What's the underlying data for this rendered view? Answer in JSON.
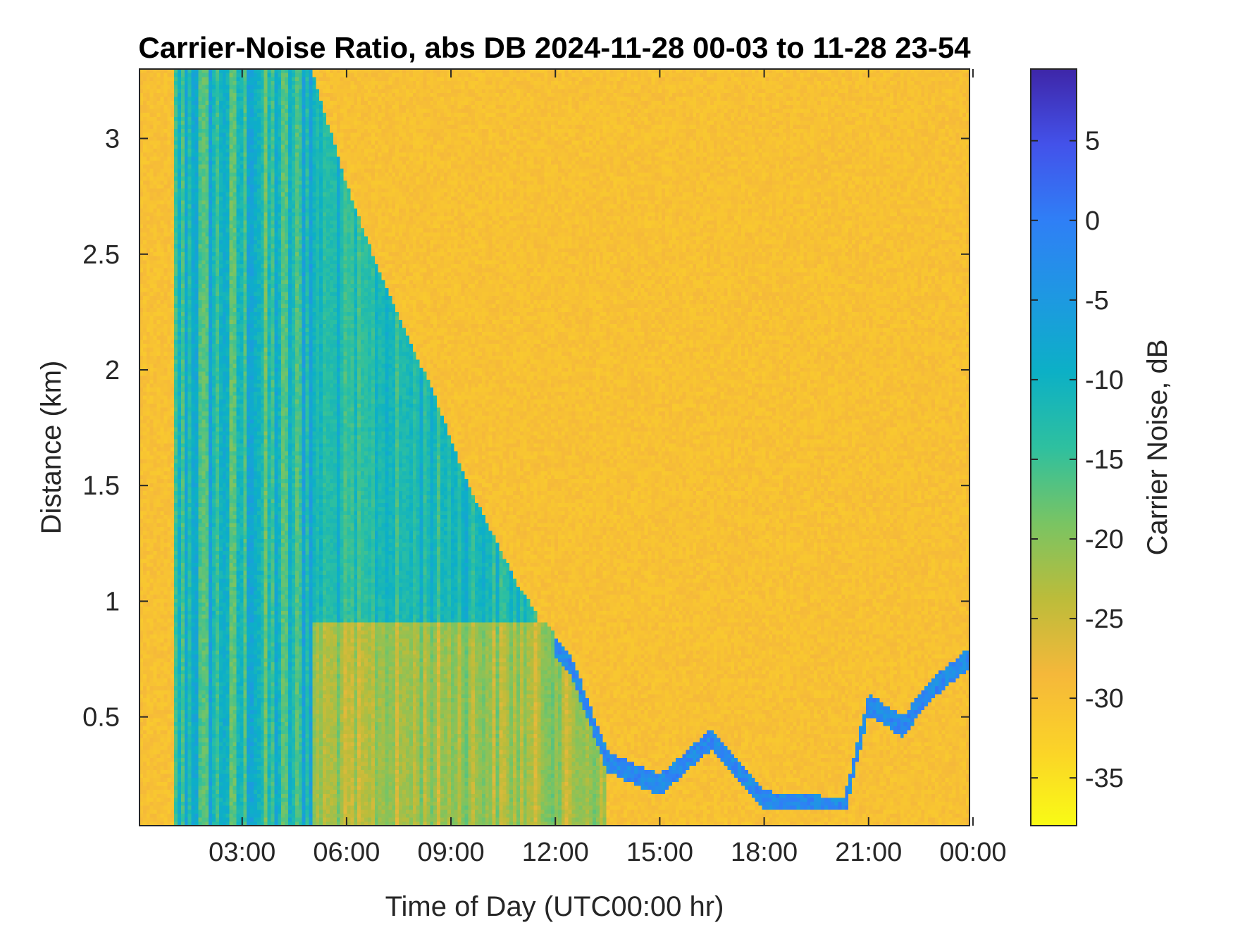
{
  "chart_data": {
    "type": "heatmap",
    "title": "Carrier-Noise Ratio, abs DB 2024-11-28 00-03 to 11-28 23-54",
    "xlabel": "Time of Day (UTC00:00 hr)",
    "ylabel": "Distance (km)",
    "colorbar_label": "Carrier Noise, dB",
    "x_range_hours": [
      0.05,
      23.9
    ],
    "y_range_km": [
      0.03,
      3.3
    ],
    "x_ticks": [
      {
        "hour": 3,
        "label": "03:00"
      },
      {
        "hour": 6,
        "label": "06:00"
      },
      {
        "hour": 9,
        "label": "09:00"
      },
      {
        "hour": 12,
        "label": "12:00"
      },
      {
        "hour": 15,
        "label": "15:00"
      },
      {
        "hour": 18,
        "label": "18:00"
      },
      {
        "hour": 21,
        "label": "21:00"
      },
      {
        "hour": 24,
        "label": "00:00"
      }
    ],
    "y_ticks": [
      {
        "km": 0.5,
        "label": "0.5"
      },
      {
        "km": 1,
        "label": "1"
      },
      {
        "km": 1.5,
        "label": "1.5"
      },
      {
        "km": 2,
        "label": "2"
      },
      {
        "km": 2.5,
        "label": "2.5"
      },
      {
        "km": 3,
        "label": "3"
      }
    ],
    "color_range_db": [
      -38,
      9.5
    ],
    "colorbar_ticks": [
      {
        "value": 5,
        "label": "5"
      },
      {
        "value": 0,
        "label": "0"
      },
      {
        "value": -5,
        "label": "-5"
      },
      {
        "value": -10,
        "label": "-10"
      },
      {
        "value": -15,
        "label": "-15"
      },
      {
        "value": -20,
        "label": "-20"
      },
      {
        "value": -25,
        "label": "-25"
      },
      {
        "value": -30,
        "label": "-30"
      },
      {
        "value": -35,
        "label": "-35"
      }
    ],
    "colormap": "parula (reversed)",
    "colormap_stops": [
      "#3e26a8",
      "#4352ea",
      "#2f7ff6",
      "#1e98e2",
      "#0cb0c6",
      "#2ec09f",
      "#79c463",
      "#bcbc3a",
      "#f5b83a",
      "#fbd328",
      "#f9fb15"
    ],
    "background_level_db": -30,
    "boundary_layer_top_km": [
      [
        0.05,
        1.7
      ],
      [
        1.0,
        3.3
      ],
      [
        5.0,
        3.3
      ],
      [
        6.0,
        2.8
      ],
      [
        7.0,
        2.4
      ],
      [
        8.5,
        1.9
      ],
      [
        9.5,
        1.5
      ],
      [
        11.0,
        1.05
      ],
      [
        12.5,
        0.75
      ],
      [
        13.5,
        0.35
      ],
      [
        15.0,
        0.25
      ],
      [
        16.5,
        0.45
      ],
      [
        18.0,
        0.18
      ],
      [
        20.3,
        0.15
      ],
      [
        21.0,
        0.6
      ],
      [
        22.0,
        0.5
      ],
      [
        22.7,
        0.65
      ],
      [
        23.9,
        0.8
      ]
    ],
    "features": [
      {
        "description": "strong backscatter columns",
        "x_hours": [
          1.0,
          5.0
        ],
        "y_km": [
          0.03,
          3.3
        ],
        "level_db": -5
      },
      {
        "description": "decaying residual layer",
        "x_hours": [
          5.0,
          11.5
        ],
        "y_km": [
          0.8,
          3.3
        ],
        "level_db": -12
      },
      {
        "description": "nocturnal surface layer",
        "x_hours": [
          5.0,
          13.5
        ],
        "y_km": [
          0.03,
          0.9
        ],
        "level_db": -22
      },
      {
        "description": "boundary layer edge",
        "x_hours": [
          12.0,
          23.9
        ],
        "y_km": [
          0.1,
          0.85
        ],
        "level_db": -2
      }
    ]
  }
}
